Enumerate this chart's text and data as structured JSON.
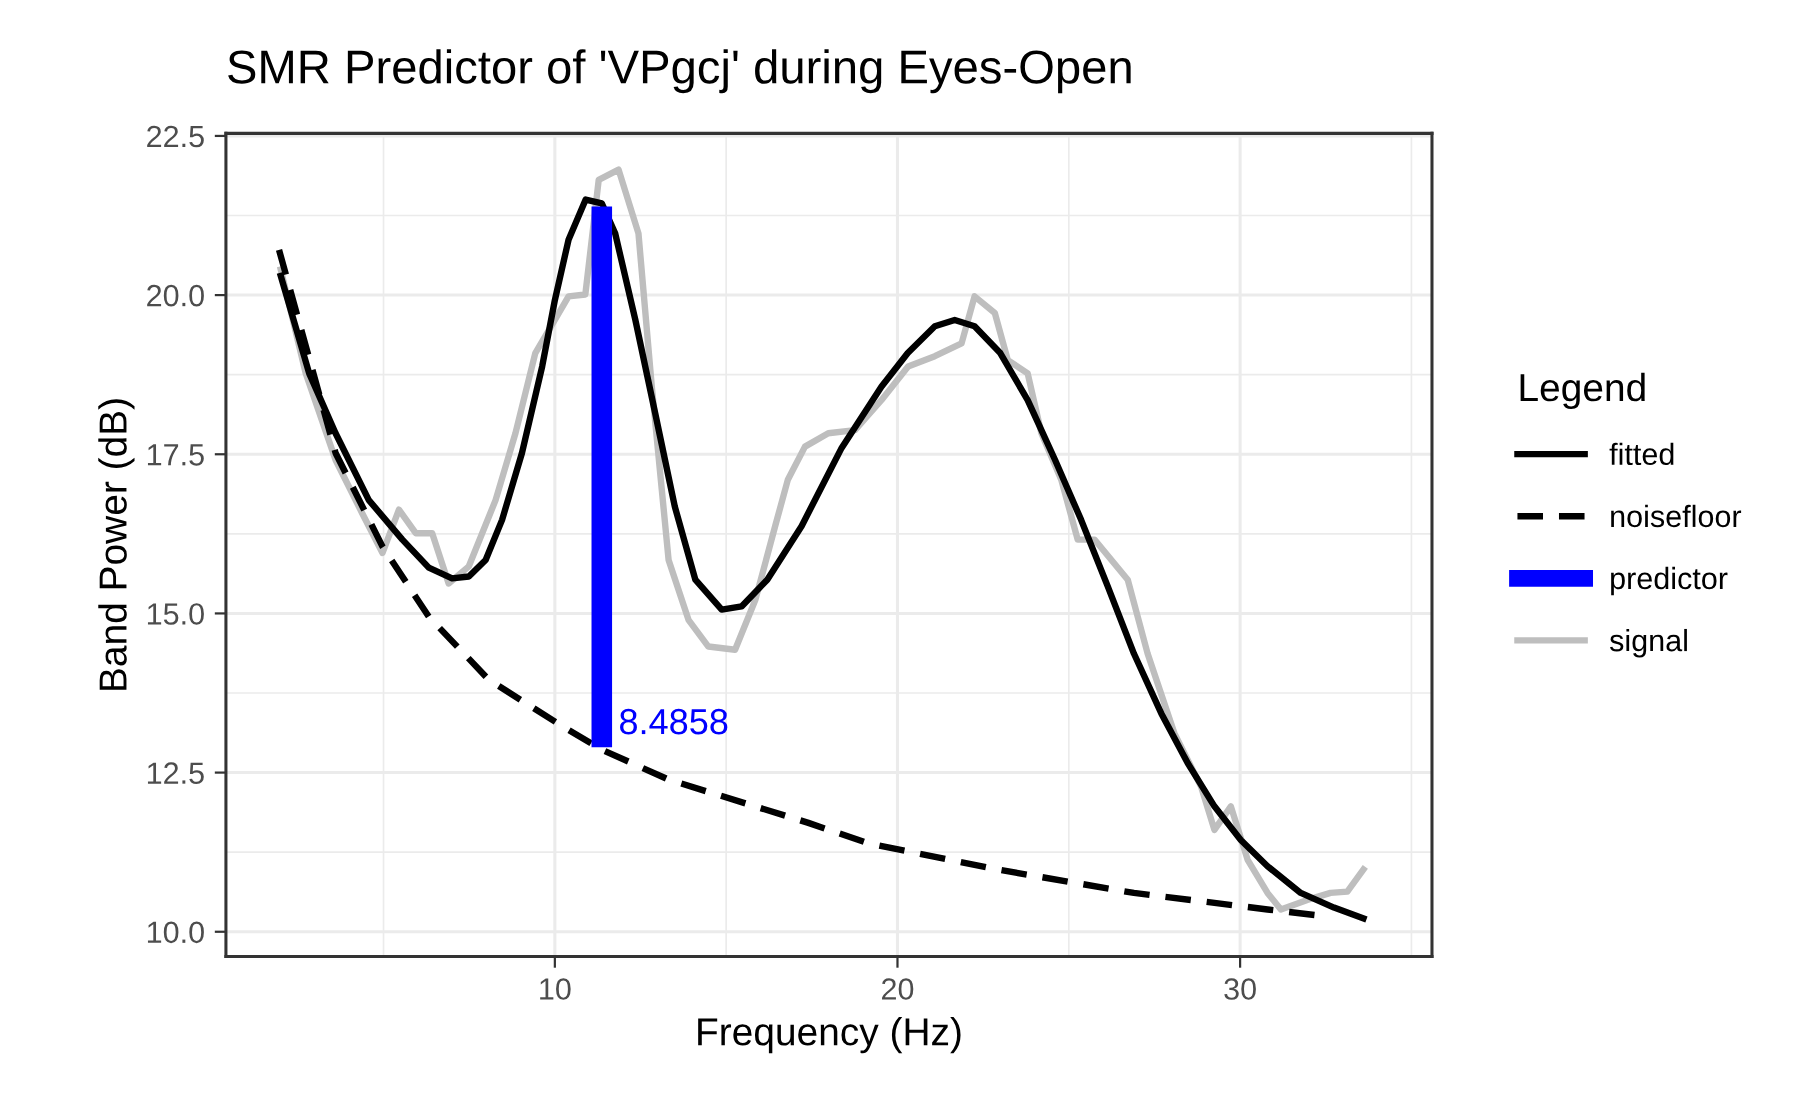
{
  "chart_data": {
    "type": "line",
    "title": "SMR Predictor of 'VPgcj' during Eyes-Open",
    "xlabel": "Frequency (Hz)",
    "ylabel": "Band Power (dB)",
    "legend_title": "Legend",
    "legend": "right",
    "grid": true,
    "xlim": [
      0.4,
      35.6
    ],
    "xticks": [
      10,
      20,
      30
    ],
    "ylim": [
      9.61,
      22.54
    ],
    "yticks": [
      {
        "value": 10,
        "label": "10.0"
      },
      {
        "value": 12.5,
        "label": "12.5"
      },
      {
        "value": 15,
        "label": "15.0"
      },
      {
        "value": 17.5,
        "label": "17.5"
      },
      {
        "value": 20,
        "label": "20.0"
      },
      {
        "value": 22.5,
        "label": "22.5"
      }
    ],
    "series": [
      {
        "name": "fitted",
        "color": "#000000",
        "line_style": "solid",
        "x": [
          2.0,
          2.83,
          3.6,
          4.57,
          5.55,
          6.32,
          7.0,
          7.49,
          7.98,
          8.46,
          9.04,
          9.63,
          10.0,
          10.4,
          10.9,
          11.37,
          11.76,
          12.35,
          12.93,
          13.5,
          14.1,
          14.87,
          15.45,
          16.2,
          17.2,
          18.37,
          19.53,
          20.3,
          21.09,
          21.67,
          22.25,
          23.0,
          23.8,
          24.6,
          25.36,
          26.14,
          26.9,
          27.7,
          28.47,
          29.25,
          30.02,
          30.8,
          31.77,
          32.74,
          33.6
        ],
        "values": [
          20.3,
          18.77,
          17.83,
          16.78,
          16.16,
          15.72,
          15.55,
          15.58,
          15.84,
          16.47,
          17.52,
          18.88,
          19.92,
          20.87,
          21.5,
          21.44,
          20.97,
          19.61,
          18.14,
          16.68,
          15.53,
          15.06,
          15.11,
          15.53,
          16.37,
          17.6,
          18.56,
          19.09,
          19.51,
          19.61,
          19.51,
          19.09,
          18.35,
          17.41,
          16.47,
          15.42,
          14.37,
          13.43,
          12.65,
          11.97,
          11.44,
          11.03,
          10.61,
          10.38,
          10.21
        ]
      },
      {
        "name": "noisefloor",
        "color": "#000000",
        "line_style": "dashed",
        "x": [
          1.95,
          3.6,
          4.97,
          6.32,
          8.07,
          10.21,
          11.37,
          13.32,
          17.4,
          19.14,
          23.0,
          26.9,
          30.8,
          32.55
        ],
        "values": [
          20.71,
          17.52,
          16.05,
          14.95,
          13.96,
          13.23,
          12.86,
          12.39,
          11.71,
          11.39,
          10.97,
          10.61,
          10.35,
          10.24
        ]
      },
      {
        "name": "predictor",
        "type": "bar",
        "color": "#0000ff",
        "x": [
          11.37
        ],
        "base": [
          12.9
        ],
        "values": [
          8.49
        ]
      },
      {
        "name": "signal",
        "color": "#bebebe",
        "line_style": "solid",
        "x": [
          2.0,
          2.73,
          3.6,
          4.38,
          4.97,
          5.45,
          5.94,
          6.42,
          6.9,
          7.49,
          8.27,
          8.85,
          9.43,
          10.0,
          10.4,
          10.89,
          11.28,
          11.86,
          12.44,
          12.83,
          13.32,
          13.9,
          14.48,
          15.26,
          15.85,
          16.43,
          16.8,
          17.3,
          17.98,
          18.76,
          19.53,
          20.31,
          21.09,
          21.87,
          22.25,
          22.84,
          23.22,
          23.8,
          24.2,
          24.78,
          25.26,
          25.75,
          26.72,
          27.3,
          28.08,
          28.86,
          29.25,
          29.73,
          30.22,
          30.8,
          31.19,
          31.96,
          32.64,
          33.13,
          33.6
        ],
        "values": [
          20.4,
          18.77,
          17.41,
          16.57,
          15.95,
          16.63,
          16.26,
          16.26,
          15.47,
          15.74,
          16.78,
          17.83,
          19.09,
          19.61,
          19.98,
          20.01,
          21.81,
          21.97,
          20.97,
          18.56,
          15.84,
          14.9,
          14.48,
          14.43,
          15.21,
          16.37,
          17.1,
          17.62,
          17.83,
          17.88,
          18.35,
          18.88,
          19.04,
          19.24,
          19.98,
          19.72,
          18.98,
          18.77,
          17.83,
          17.1,
          16.16,
          16.16,
          15.53,
          14.37,
          13.12,
          12.28,
          11.6,
          11.97,
          11.13,
          10.61,
          10.35,
          10.5,
          10.61,
          10.63,
          10.98
        ]
      }
    ],
    "annotations": [
      {
        "text": "8.4858",
        "x": 11.37,
        "y": 12.9
      }
    ]
  }
}
